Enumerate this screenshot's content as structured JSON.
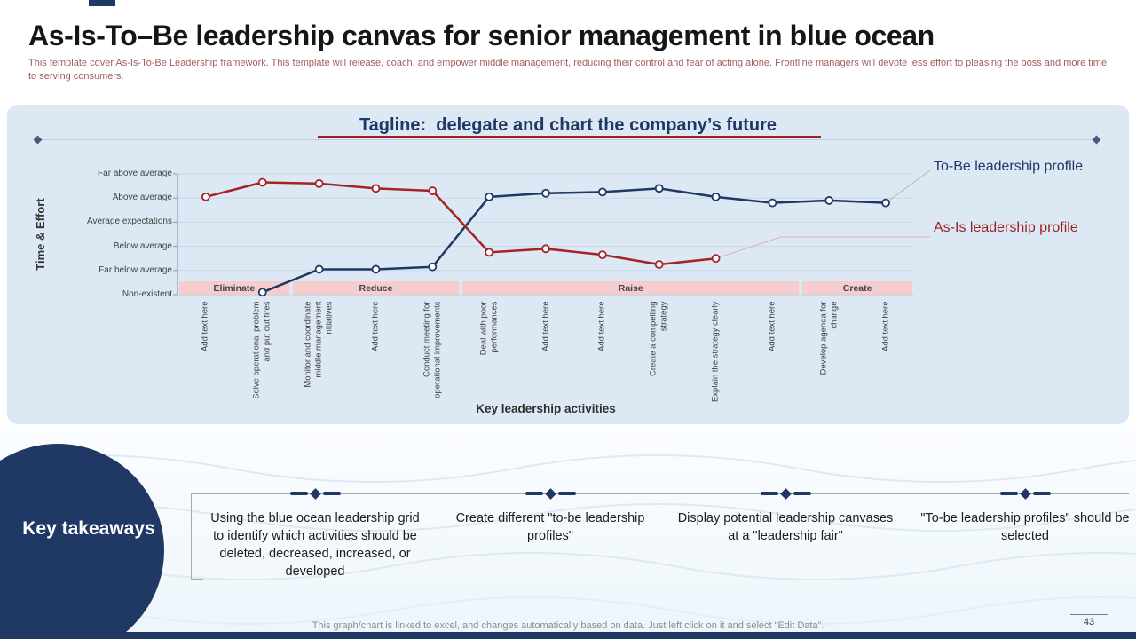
{
  "slide": {
    "title": "As-Is-To–Be leadership canvas for senior management in blue ocean",
    "subtitle": "This template cover As-Is-To-Be Leadership framework. This template will release, coach, and empower middle management, reducing their control and fear of acting alone. Frontline managers will devote less effort to pleasing the boss and more time to serving consumers.",
    "footer_note": "This graph/chart is linked to excel, and changes automatically based on data. Just left click on it and select “Edit Data”.",
    "page_number": "43"
  },
  "chart": {
    "tagline": "Tagline:  delegate and chart the company’s future",
    "y_axis_title": "Time & Effort",
    "x_axis_title": "Key leadership activities",
    "legend": [
      {
        "label": "To-Be leadership profile",
        "color": "#1f3864"
      },
      {
        "label": "As-Is leadership profile",
        "color": "#9c1f1f"
      }
    ]
  },
  "chart_data": {
    "type": "line",
    "title": "Tagline:  delegate and chart the company’s future",
    "xlabel": "Key leadership activities",
    "ylabel": "Time & Effort",
    "y_tick_labels_top_to_bottom": [
      "Far above average",
      "Above average",
      "Average expectations",
      "Below average",
      "Far below average",
      "Non-existent"
    ],
    "y_scale_note": "numeric scale 0 = Non-existent to 5 = Far above average",
    "categories": [
      "Add text here",
      "Solve operational problem and put out fires",
      "Monitor and coordinate middle management initiatives",
      "Add text here",
      "Conduct meeting for operational improvements",
      "Deal with poor performances",
      "Add text here",
      "Add text here",
      "Create a compelling strategy",
      "Explain the strategy clearly",
      "Add text here",
      "Develop agenda for change",
      "Add text here"
    ],
    "category_groups": [
      {
        "label": "Eliminate",
        "start_index": 0,
        "end_index": 1
      },
      {
        "label": "Reduce",
        "start_index": 2,
        "end_index": 4
      },
      {
        "label": "Raise",
        "start_index": 5,
        "end_index": 10
      },
      {
        "label": "Create",
        "start_index": 11,
        "end_index": 12
      }
    ],
    "series": [
      {
        "name": "To-Be leadership profile",
        "color": "#1f3864",
        "values": [
          null,
          0.1,
          1.05,
          1.05,
          1.15,
          4.05,
          4.2,
          4.25,
          4.4,
          4.05,
          3.8,
          3.9,
          3.8
        ]
      },
      {
        "name": "As-Is leadership profile",
        "color": "#a32424",
        "values": [
          4.05,
          4.65,
          4.6,
          4.4,
          4.3,
          1.75,
          1.9,
          1.65,
          1.25,
          1.5,
          null,
          null,
          null
        ]
      }
    ],
    "legend_position": "right",
    "grid": true
  },
  "takeaways": {
    "heading": "Key takeaways",
    "items": [
      "Using the blue ocean leadership grid to identify which activities should be deleted, decreased, increased, or developed",
      "Create different \"to-be leadership profiles\"",
      "Display potential leadership canvases at a \"leadership fair\"",
      "\"To-be leadership profiles\" should be selected"
    ]
  }
}
